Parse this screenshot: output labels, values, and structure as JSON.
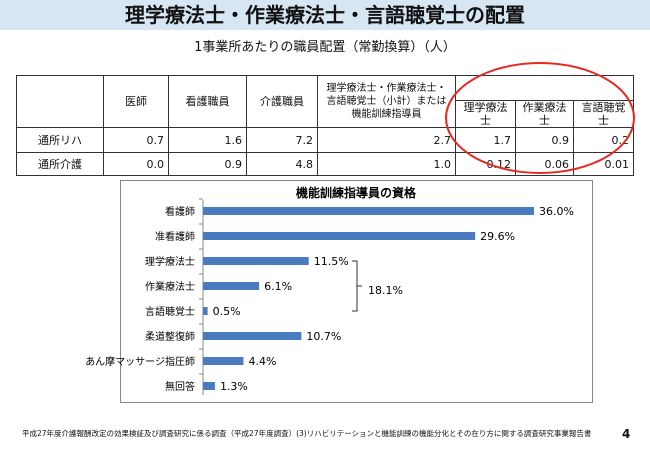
{
  "title": "理学療法士・作業療法士・言語聴覚士の配置",
  "subtitle": "1事業所あたりの職員配置（常勤換算）（人）",
  "table": {
    "headers": [
      "医師",
      "看護職員",
      "介護職員",
      "理学療法士・作業療法士・言語聴覚士（小計）または機能訓練指導員"
    ],
    "subheaders": [
      "理学療法士",
      "作業療法士",
      "言語聴覚士"
    ],
    "rows": [
      {
        "label": "通所リハ",
        "values": [
          "0.7",
          "1.6",
          "7.2",
          "2.7",
          "1.7",
          "0.9",
          "0.2"
        ]
      },
      {
        "label": "通所介護",
        "values": [
          "0.0",
          "0.9",
          "4.8",
          "1.0",
          "0.12",
          "0.06",
          "0.01"
        ]
      }
    ],
    "highlight_color": "#e8281e"
  },
  "chart_data": {
    "type": "bar",
    "orientation": "horizontal",
    "title": "機能訓練指導員の資格",
    "categories": [
      "看護師",
      "准看護師",
      "理学療法士",
      "作業療法士",
      "言語聴覚士",
      "柔道整復師",
      "あん摩マッサージ指圧師",
      "無回答"
    ],
    "values": [
      36.0,
      29.6,
      11.5,
      6.1,
      0.5,
      10.7,
      4.4,
      1.3
    ],
    "labels": [
      "36.0%",
      "29.6%",
      "11.5%",
      "6.1%",
      "0.5%",
      "10.7%",
      "4.4%",
      "1.3%"
    ],
    "bracket_label": "18.1%",
    "bar_color": "#4a7bbf"
  },
  "footer": "平成27年度介護報酬改定の効果検証及び調査研究に係る調査（平成27年度調査）(3)リハビリテーションと機能訓練の機能分化とその在り方に関する調査研究事業報告書",
  "page_number": "4"
}
